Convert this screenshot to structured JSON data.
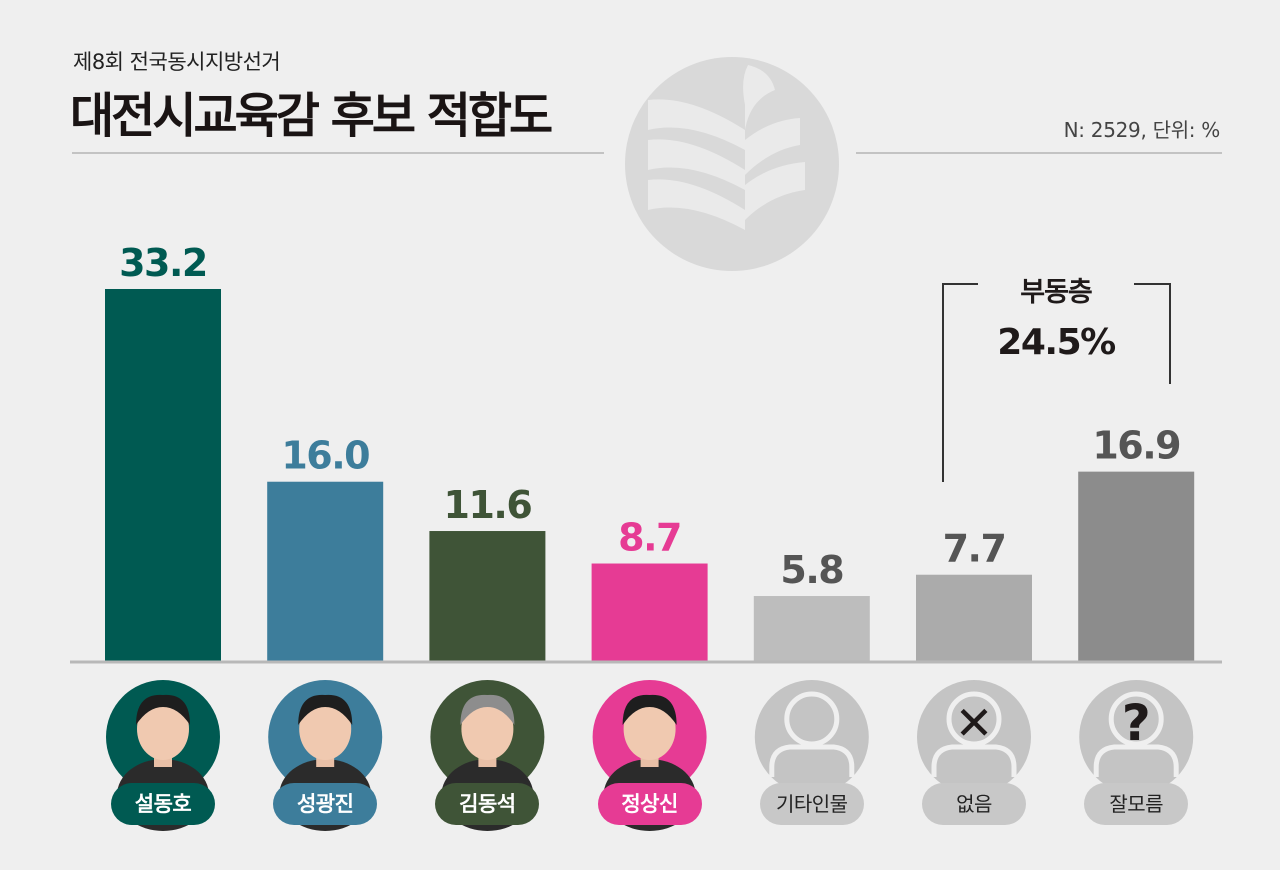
{
  "header": {
    "subtitle": "제8회 전국동시지방선거",
    "title": "대전시교육감 후보 적합도",
    "meta": "N: 2529, 단위: %"
  },
  "colors": {
    "background": "#efefef",
    "seolDongho": "#005a52",
    "seongGwangjin": "#3d7d9b",
    "kimDongseok": "#3f5437",
    "jeongSangsin": "#e63b94",
    "other": "#bdbdbd",
    "none": "#ababab",
    "unknown": "#8c8c8c"
  },
  "undecided": {
    "label": "부동층",
    "value": "24.5%"
  },
  "chart_data": {
    "type": "bar",
    "categories": [
      "설동호",
      "성광진",
      "김동석",
      "정상신",
      "기타인물",
      "없음",
      "잘모름"
    ],
    "values": [
      33.2,
      16.0,
      11.6,
      8.7,
      5.8,
      7.7,
      16.9
    ],
    "value_labels": [
      "33.2",
      "16.0",
      "11.6",
      "8.7",
      "5.8",
      "7.7",
      "16.9"
    ],
    "colors": [
      "#005a52",
      "#3d7d9b",
      "#3f5437",
      "#e63b94",
      "#bdbdbd",
      "#ababab",
      "#8c8c8c"
    ],
    "label_colors": [
      "#005a52",
      "#3d7d9b",
      "#3f5437",
      "#e63b94",
      "#555555",
      "#555555",
      "#555555"
    ],
    "avatar_types": [
      "photo",
      "photo",
      "photo",
      "photo",
      "person",
      "x",
      "question"
    ],
    "ylim": [
      0,
      33.2
    ],
    "grid": false,
    "legend": "none"
  }
}
